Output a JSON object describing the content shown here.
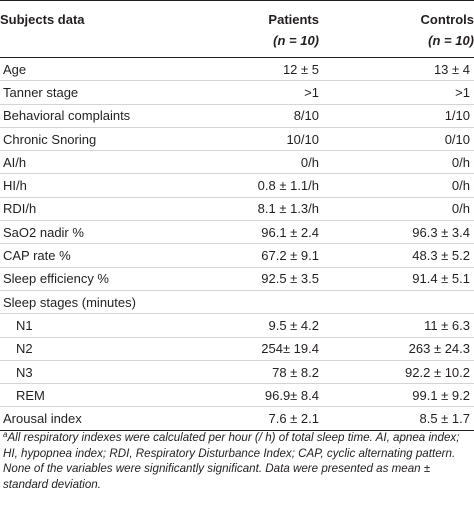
{
  "table": {
    "headers": {
      "label": "Subjects data",
      "patients": "Patients",
      "controls": "Controls",
      "patients_n": "(n = 10)",
      "controls_n": "(n = 10)"
    },
    "rows": [
      {
        "label": "Age",
        "patients": "12 ± 5",
        "controls": "13 ± 4",
        "indent": false
      },
      {
        "label": "Tanner stage",
        "patients": ">1",
        "controls": ">1",
        "indent": false
      },
      {
        "label": "Behavioral complaints",
        "patients": "8/10",
        "controls": "1/10",
        "indent": false
      },
      {
        "label": "Chronic Snoring",
        "patients": "10/10",
        "controls": "0/10",
        "indent": false
      },
      {
        "label": "AI/h",
        "patients": "0/h",
        "controls": "0/h",
        "indent": false
      },
      {
        "label": "HI/h",
        "patients": "0.8 ± 1.1/h",
        "controls": "0/h",
        "indent": false
      },
      {
        "label": "RDI/h",
        "patients": "8.1 ± 1.3/h",
        "controls": "0/h",
        "indent": false
      },
      {
        "label": "SaO2 nadir %",
        "patients": "96.1 ± 2.4",
        "controls": "96.3 ± 3.4",
        "indent": false
      },
      {
        "label": "CAP rate %",
        "patients": "67.2 ± 9.1",
        "controls": "48.3 ± 5.2",
        "indent": false
      },
      {
        "label": "Sleep efficiency %",
        "patients": "92.5 ± 3.5",
        "controls": "91.4 ± 5.1",
        "indent": false
      },
      {
        "label": "Sleep stages (minutes)",
        "patients": "",
        "controls": "",
        "indent": false
      },
      {
        "label": "N1",
        "patients": "9.5 ± 4.2",
        "controls": "11 ± 6.3",
        "indent": true
      },
      {
        "label": "N2",
        "patients": "254± 19.4",
        "controls": "263 ± 24.3",
        "indent": true
      },
      {
        "label": "N3",
        "patients": "78 ± 8.2",
        "controls": "92.2 ± 10.2",
        "indent": true
      },
      {
        "label": "REM",
        "patients": "96.9± 8.4",
        "controls": "99.1 ± 9.2",
        "indent": true
      },
      {
        "label": "Arousal index",
        "patients": "7.6 ± 2.1",
        "controls": "8.5 ± 1.7",
        "indent": false
      }
    ]
  },
  "footnote": {
    "marker": "a",
    "text": "All respiratory indexes were calculated per hour (/ h) of total sleep time. AI, apnea index; HI, hypopnea index; RDI, Respiratory Disturbance Index; CAP, cyclic alternating pattern. None of the variables were significantly significant. Data were presented as mean ± standard deviation."
  }
}
